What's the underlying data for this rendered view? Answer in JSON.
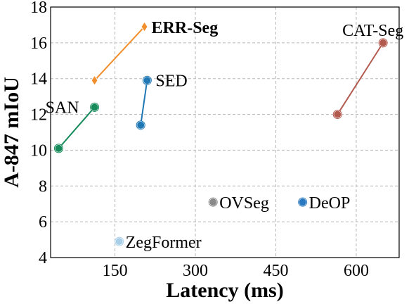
{
  "chart_data": {
    "type": "scatter",
    "xlabel": "Latency (ms)",
    "ylabel": "A-847 mIoU",
    "xlim": [
      30,
      680
    ],
    "ylim": [
      4,
      18
    ],
    "xticks": [
      150,
      300,
      450,
      600
    ],
    "yticks": [
      4,
      6,
      8,
      10,
      12,
      14,
      16,
      18
    ],
    "grid": true,
    "series": [
      {
        "name": "ERR-Seg",
        "bold": true,
        "color": "#f28e2b",
        "marker": "diamond",
        "points": [
          {
            "x": 112,
            "y": 13.9
          },
          {
            "x": 205,
            "y": 16.9
          }
        ]
      },
      {
        "name": "CAT-Seg",
        "bold": false,
        "color": "#b35a4f",
        "marker": "circle",
        "points": [
          {
            "x": 565,
            "y": 12.0
          },
          {
            "x": 650,
            "y": 16.0
          }
        ]
      },
      {
        "name": "SED",
        "bold": false,
        "color": "#1f77b4",
        "marker": "circle",
        "points": [
          {
            "x": 198,
            "y": 11.4
          },
          {
            "x": 210,
            "y": 13.9
          }
        ]
      },
      {
        "name": "SAN",
        "bold": false,
        "color": "#168a5a",
        "marker": "circle",
        "points": [
          {
            "x": 45,
            "y": 10.1
          },
          {
            "x": 112,
            "y": 12.4
          }
        ]
      },
      {
        "name": "OVSeg",
        "bold": false,
        "color": "#8a8a8a",
        "marker": "circle",
        "points": [
          {
            "x": 333,
            "y": 7.1
          }
        ]
      },
      {
        "name": "DeOP",
        "bold": false,
        "color": "#2a78c0",
        "marker": "circle",
        "points": [
          {
            "x": 500,
            "y": 7.1
          }
        ]
      },
      {
        "name": "ZegFormer",
        "bold": false,
        "color": "#a9cfe8",
        "marker": "circle",
        "points": [
          {
            "x": 158,
            "y": 4.9
          }
        ]
      }
    ]
  }
}
